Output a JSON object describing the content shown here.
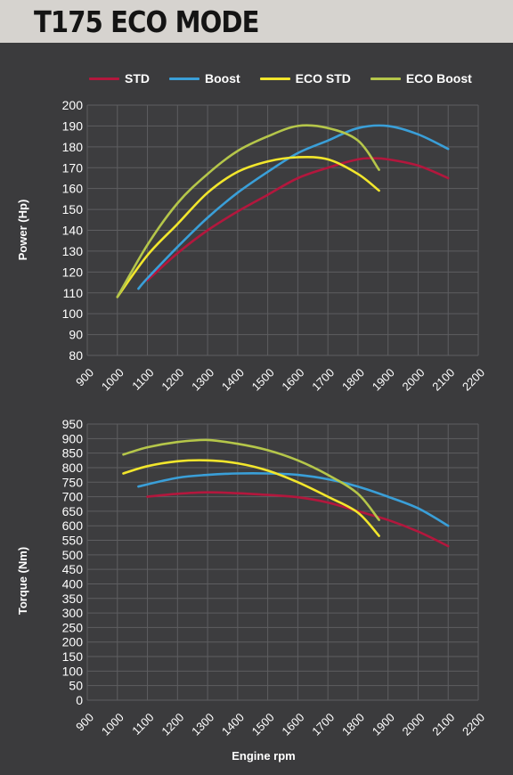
{
  "title": "T175 ECO MODE",
  "legend": [
    {
      "name": "STD",
      "color": "#b3173d"
    },
    {
      "name": "Boost",
      "color": "#3a9fd8"
    },
    {
      "name": "ECO STD",
      "color": "#f2e62c"
    },
    {
      "name": "ECO Boost",
      "color": "#b5c64a"
    }
  ],
  "xlabel": "Engine rpm",
  "chart_data": [
    {
      "type": "line",
      "ylabel": "Power (Hp)",
      "xlim": [
        900,
        2200
      ],
      "ylim": [
        80,
        200
      ],
      "x_ticks": [
        900,
        1000,
        1100,
        1200,
        1300,
        1400,
        1500,
        1600,
        1700,
        1800,
        1900,
        2000,
        2100,
        2200
      ],
      "y_ticks": [
        80,
        90,
        100,
        110,
        120,
        130,
        140,
        150,
        160,
        170,
        180,
        190,
        200
      ],
      "grid": true,
      "series": [
        {
          "name": "STD",
          "color": "#b3173d",
          "x": [
            1100,
            1200,
            1300,
            1400,
            1500,
            1600,
            1700,
            1800,
            1850,
            1900,
            2000,
            2100
          ],
          "y": [
            116,
            129,
            140,
            149,
            157,
            165,
            170,
            174,
            174.5,
            174,
            171,
            165
          ]
        },
        {
          "name": "Boost",
          "color": "#3a9fd8",
          "x": [
            1070,
            1100,
            1200,
            1300,
            1400,
            1500,
            1600,
            1700,
            1800,
            1900,
            2000,
            2100
          ],
          "y": [
            112,
            117,
            132,
            146,
            158,
            168,
            177,
            183,
            189,
            190,
            186,
            179
          ]
        },
        {
          "name": "ECO STD",
          "color": "#f2e62c",
          "x": [
            1000,
            1100,
            1200,
            1300,
            1400,
            1500,
            1600,
            1700,
            1800,
            1870
          ],
          "y": [
            108,
            128,
            143,
            158,
            168,
            173,
            175,
            174,
            167,
            159
          ]
        },
        {
          "name": "ECO Boost",
          "color": "#b5c64a",
          "x": [
            1000,
            1100,
            1200,
            1300,
            1400,
            1500,
            1600,
            1700,
            1800,
            1870
          ],
          "y": [
            108,
            133,
            153,
            167,
            178,
            185,
            190,
            189,
            183,
            169
          ]
        }
      ]
    },
    {
      "type": "line",
      "ylabel": "Torque (Nm)",
      "xlim": [
        900,
        2200
      ],
      "ylim": [
        0,
        950
      ],
      "x_ticks": [
        900,
        1000,
        1100,
        1200,
        1300,
        1400,
        1500,
        1600,
        1700,
        1800,
        1900,
        2000,
        2100,
        2200
      ],
      "y_ticks": [
        0,
        50,
        100,
        150,
        200,
        250,
        300,
        350,
        400,
        450,
        500,
        550,
        600,
        650,
        700,
        750,
        800,
        850,
        900,
        950
      ],
      "grid": true,
      "series": [
        {
          "name": "STD",
          "color": "#b3173d",
          "x": [
            1100,
            1200,
            1300,
            1400,
            1500,
            1600,
            1700,
            1800,
            1900,
            2000,
            2100
          ],
          "y": [
            700,
            710,
            715,
            712,
            706,
            698,
            680,
            650,
            620,
            580,
            530
          ]
        },
        {
          "name": "Boost",
          "color": "#3a9fd8",
          "x": [
            1070,
            1200,
            1300,
            1400,
            1500,
            1600,
            1700,
            1800,
            1900,
            2000,
            2100
          ],
          "y": [
            735,
            765,
            775,
            780,
            780,
            775,
            760,
            735,
            700,
            660,
            600
          ]
        },
        {
          "name": "ECO STD",
          "color": "#f2e62c",
          "x": [
            1020,
            1100,
            1200,
            1300,
            1400,
            1500,
            1600,
            1700,
            1800,
            1870
          ],
          "y": [
            780,
            805,
            822,
            825,
            815,
            790,
            750,
            700,
            645,
            565
          ]
        },
        {
          "name": "ECO Boost",
          "color": "#b5c64a",
          "x": [
            1020,
            1100,
            1200,
            1300,
            1400,
            1500,
            1600,
            1700,
            1800,
            1870
          ],
          "y": [
            845,
            870,
            888,
            895,
            882,
            860,
            825,
            775,
            710,
            620
          ]
        }
      ]
    }
  ]
}
